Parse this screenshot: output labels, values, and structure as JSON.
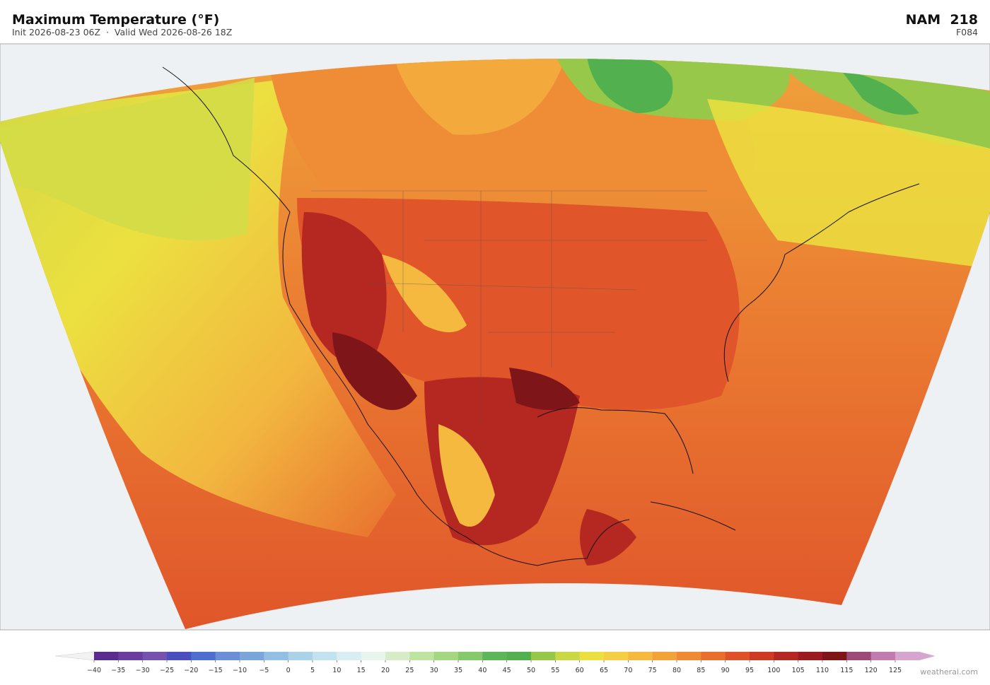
{
  "header": {
    "title": "Maximum Temperature  (°F)",
    "subtitle": "Init 2026-08-23 06Z  ·  Valid Wed 2026-08-26 18Z",
    "model": "NAM  218",
    "forecast_hour": "F084"
  },
  "map": {
    "colorbar": {
      "ticks": [
        {
          "value": -40,
          "label": "−40"
        },
        {
          "value": -35,
          "label": "−35"
        },
        {
          "value": -30,
          "label": "−30"
        },
        {
          "value": -25,
          "label": "−25"
        },
        {
          "value": -20,
          "label": "−20"
        },
        {
          "value": -15,
          "label": "−15"
        },
        {
          "value": -10,
          "label": "−10"
        },
        {
          "value": -5,
          "label": "−5"
        },
        0,
        5,
        10,
        15,
        20,
        25,
        30,
        35,
        40,
        45,
        50,
        55,
        60,
        65,
        70,
        75,
        80,
        85,
        90,
        95,
        100,
        105,
        110,
        115,
        120,
        125
      ],
      "colors": [
        "#5b2c8f",
        "#6b3d9e",
        "#7552ad",
        "#4a4fbf",
        "#4f6fce",
        "#6a8fd6",
        "#7aa6dc",
        "#93bfe3",
        "#aad3ea",
        "#c3e2ef",
        "#d9eef3",
        "#e8f5ef",
        "#d6edc8",
        "#bfe3a0",
        "#a5d783",
        "#86c96c",
        "#5eb55a",
        "#52b04f",
        "#98c84a",
        "#cbd845",
        "#ece040",
        "#f4cf46",
        "#f5b940",
        "#f3a23a",
        "#ee8a34",
        "#e86f2e",
        "#e0522a",
        "#cf3a25",
        "#b52822",
        "#9b1b1f",
        "#7e1518",
        "#9c4a78",
        "#c27db0",
        "#d6a6d0"
      ]
    },
    "credit": "weatherai.com"
  }
}
